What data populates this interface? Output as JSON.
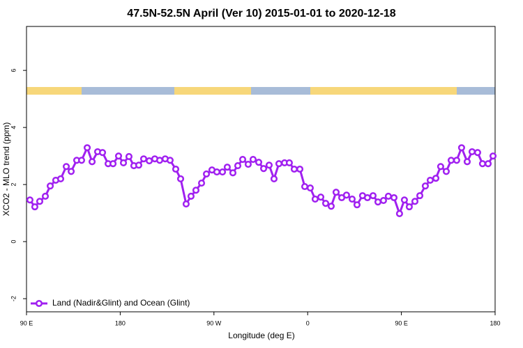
{
  "chart_data": {
    "type": "line",
    "title": "47.5N-52.5N April (Ver 10)   2015-01-01 to 2020-12-18",
    "xlabel": "Longitude (deg E)",
    "ylabel": "XCO2 - MLO trend (ppm)",
    "xlim": [
      90,
      540
    ],
    "ylim": [
      -2.46,
      7.54
    ],
    "xticks": [
      {
        "value": 90,
        "label": "90 E"
      },
      180,
      {
        "value": 270,
        "label": "90 W"
      },
      {
        "value": 360,
        "label": "0"
      },
      {
        "value": 450,
        "label": "90 E"
      },
      {
        "value": 540,
        "label": "180"
      }
    ],
    "yticks": [
      -2,
      0,
      2,
      4,
      6
    ],
    "legend_position": "bottom-left",
    "x": [
      93.3,
      98.0,
      102.7,
      108.1,
      112.8,
      118.1,
      122.8,
      128.2,
      132.9,
      138.2,
      142.9,
      148.3,
      153.0,
      158.3,
      163.0,
      168.4,
      173.1,
      178.4,
      183.1,
      188.4,
      193.1,
      197.8,
      202.5,
      207.9,
      213.2,
      217.9,
      223.2,
      227.9,
      233.3,
      238.0,
      243.3,
      248.0,
      252.7,
      258.1,
      262.8,
      268.1,
      272.8,
      278.2,
      282.8,
      288.2,
      292.9,
      297.6,
      302.9,
      307.6,
      313.0,
      317.7,
      323.0,
      327.7,
      332.4,
      337.8,
      342.4,
      347.1,
      352.5,
      357.2,
      362.5,
      367.2,
      372.6,
      377.3,
      382.6,
      387.3,
      392.7,
      397.3,
      402.7,
      407.4,
      412.7,
      417.4,
      422.8,
      427.5,
      432.8,
      437.5,
      442.9,
      448.2,
      452.9,
      457.6,
      463.0,
      467.7,
      473.0,
      477.7,
      483.1,
      487.7,
      493.1,
      497.8,
      503.1,
      507.8,
      513.2,
      517.9,
      523.2,
      527.9,
      533.3,
      538.0
    ],
    "series": [
      {
        "name": "Land (Nadir&Glint) and Ocean (Glint)",
        "color": "#a020f0",
        "values": [
          1.46,
          1.22,
          1.41,
          1.59,
          1.95,
          2.15,
          2.2,
          2.63,
          2.46,
          2.85,
          2.85,
          3.29,
          2.8,
          3.15,
          3.12,
          2.73,
          2.73,
          3.0,
          2.76,
          2.98,
          2.66,
          2.68,
          2.9,
          2.83,
          2.9,
          2.85,
          2.9,
          2.85,
          2.54,
          2.2,
          1.32,
          1.59,
          1.8,
          2.05,
          2.37,
          2.51,
          2.44,
          2.44,
          2.61,
          2.41,
          2.66,
          2.88,
          2.71,
          2.88,
          2.78,
          2.56,
          2.68,
          2.2,
          2.73,
          2.76,
          2.76,
          2.54,
          2.54,
          1.93,
          1.88,
          1.49,
          1.56,
          1.34,
          1.24,
          1.73,
          1.54,
          1.63,
          1.49,
          1.29,
          1.61,
          1.54,
          1.61,
          1.39,
          1.44,
          1.59,
          1.54,
          0.98,
          1.46,
          1.22,
          1.41,
          1.61,
          1.95,
          2.15,
          2.22,
          2.63,
          2.46,
          2.85,
          2.85,
          3.29,
          2.8,
          3.15,
          3.12,
          2.73,
          2.73,
          3.0
        ]
      }
    ]
  }
}
